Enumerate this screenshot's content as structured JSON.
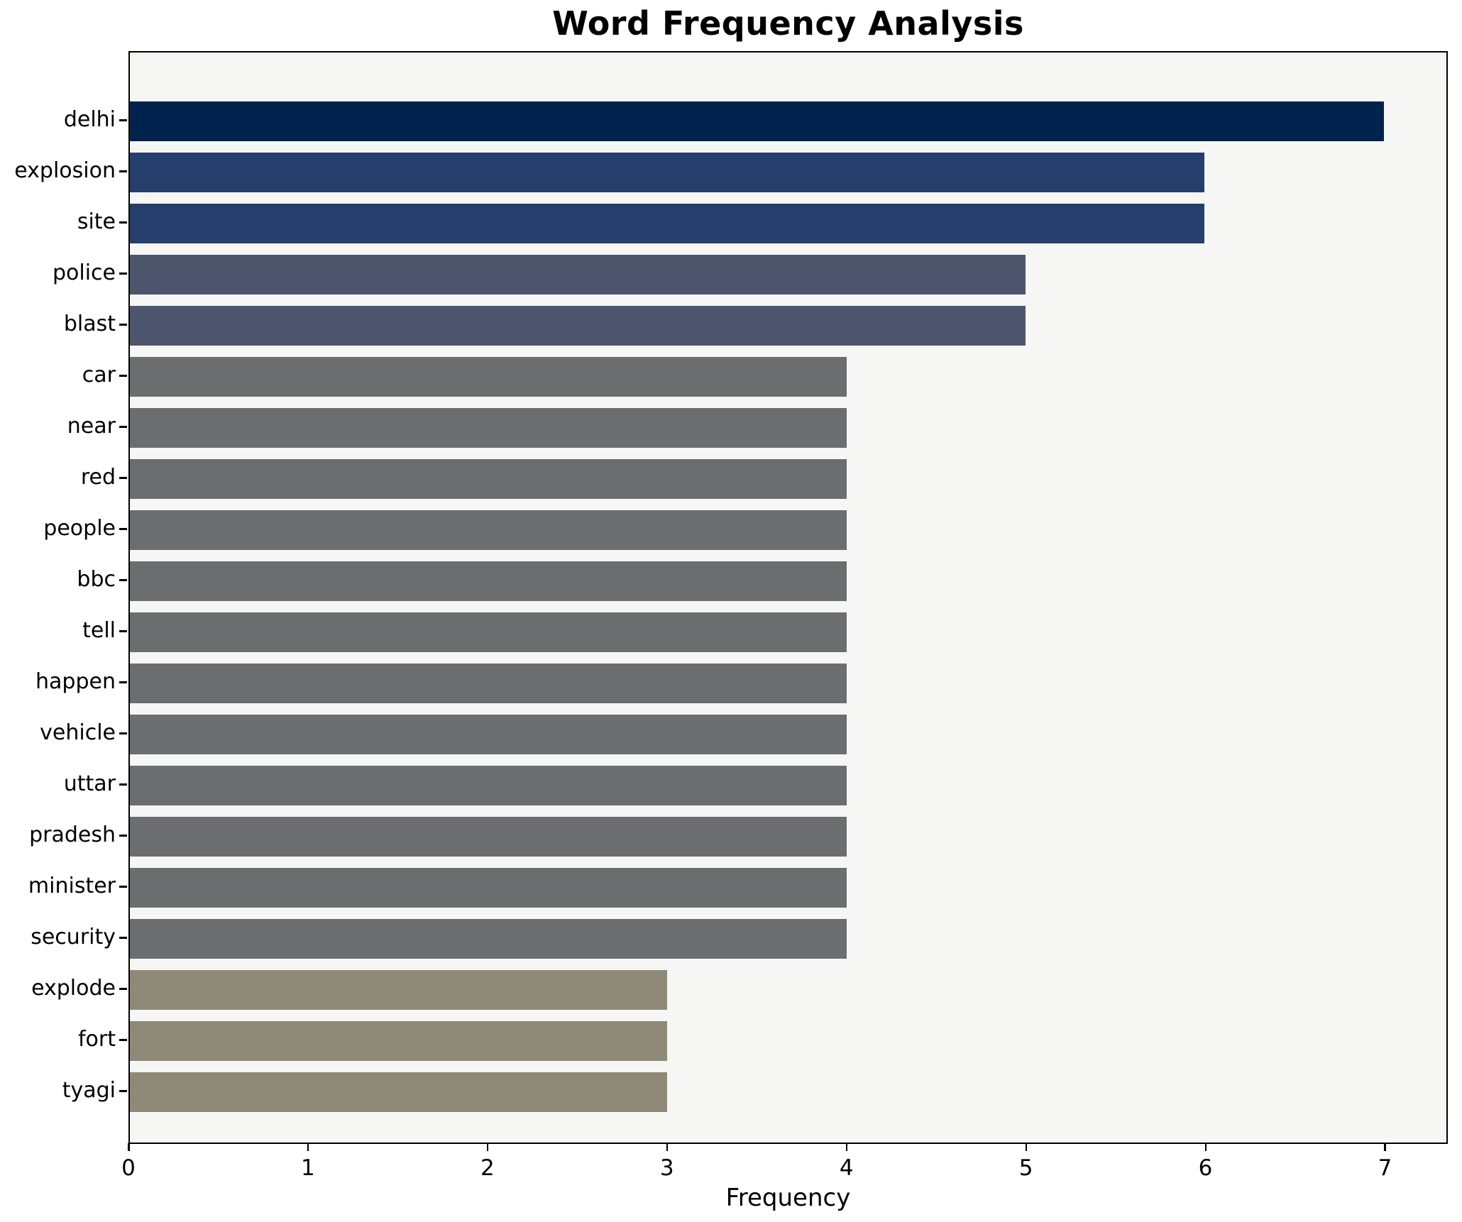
{
  "chart_data": {
    "type": "bar",
    "orientation": "horizontal",
    "title": "Word Frequency Analysis",
    "xlabel": "Frequency",
    "ylabel": "",
    "categories": [
      "delhi",
      "explosion",
      "site",
      "police",
      "blast",
      "car",
      "near",
      "red",
      "people",
      "bbc",
      "tell",
      "happen",
      "vehicle",
      "uttar",
      "pradesh",
      "minister",
      "security",
      "explode",
      "fort",
      "tyagi"
    ],
    "values": [
      7,
      6,
      6,
      5,
      5,
      4,
      4,
      4,
      4,
      4,
      4,
      4,
      4,
      4,
      4,
      4,
      4,
      3,
      3,
      3
    ],
    "bar_colors": [
      "#01224d",
      "#253e6c",
      "#253e6c",
      "#4d556d",
      "#4d556d",
      "#6b6d6e",
      "#6b6d6e",
      "#6b6d6e",
      "#6b6d6e",
      "#6b6d6e",
      "#6b6d6e",
      "#6b6d6e",
      "#6b6d6e",
      "#6b6d6e",
      "#6b6d6e",
      "#6b6d6e",
      "#6b6d6e",
      "#8f8a77",
      "#8f8a77",
      "#8f8a77"
    ],
    "value_color_map": {
      "7": "#01224d",
      "6": "#253e6c",
      "5": "#4d556d",
      "4": "#6b6d6e",
      "3": "#8f8a77"
    },
    "xticks": [
      0,
      1,
      2,
      3,
      4,
      5,
      6,
      7
    ],
    "xlim": [
      0,
      7.35
    ],
    "grid": false,
    "legend": null,
    "plot_background": "#f6f7f4",
    "figure_background": "#ffffff",
    "spine_color": "#000000"
  }
}
